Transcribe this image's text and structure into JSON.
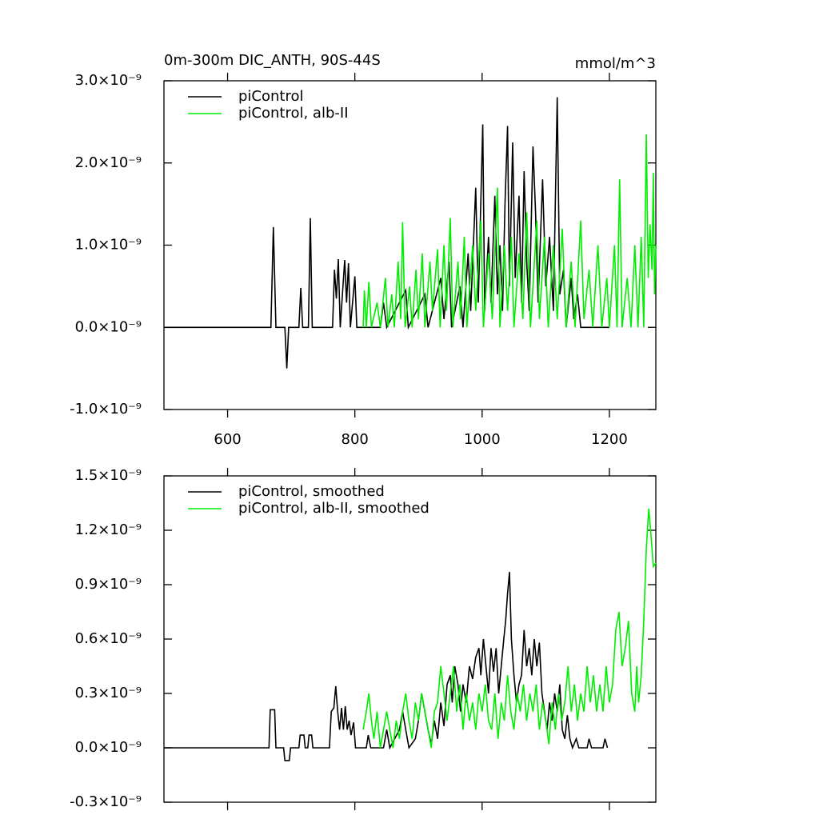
{
  "chart_data": [
    {
      "type": "line",
      "title": "0m-300m DIC_ANTH, 90S-44S",
      "unit_label": "mmol/m^3",
      "xlim": [
        500,
        1273
      ],
      "xticks": [
        600,
        800,
        1000,
        1200
      ],
      "ylim": [
        -1e-09,
        3e-09
      ],
      "yticks": [
        {
          "value": -1e-09,
          "label": "-1.0×10⁻⁹"
        },
        {
          "value": 0,
          "label": "0.0×10⁻⁹"
        },
        {
          "value": 1e-09,
          "label": "1.0×10⁻⁹"
        },
        {
          "value": 2e-09,
          "label": "2.0×10⁻⁹"
        },
        {
          "value": 3e-09,
          "label": "3.0×10⁻⁹"
        }
      ],
      "series": [
        {
          "name": "piControl",
          "color": "#000000",
          "x": [
            500,
            668,
            672,
            676,
            690,
            693,
            696,
            712,
            715,
            718,
            727,
            730,
            733,
            765,
            768,
            771,
            774,
            777,
            784,
            787,
            790,
            793,
            800,
            803,
            840,
            845,
            850,
            880,
            884,
            910,
            915,
            935,
            940,
            948,
            952,
            965,
            970,
            978,
            982,
            990,
            994,
            1001,
            1004,
            1010,
            1014,
            1020,
            1024,
            1028,
            1032,
            1036,
            1040,
            1043,
            1048,
            1052,
            1058,
            1062,
            1066,
            1070,
            1074,
            1080,
            1084,
            1088,
            1095,
            1100,
            1106,
            1112,
            1118,
            1122,
            1128,
            1132,
            1140,
            1144,
            1150,
            1155,
            1200
          ],
          "values": [
            0,
            0,
            1.22e-09,
            0,
            0,
            -5e-10,
            0,
            0,
            4.8e-10,
            0,
            0,
            1.33e-09,
            0,
            0,
            7e-10,
            3.5e-10,
            8.3e-10,
            0,
            8.2e-10,
            3e-10,
            7.8e-10,
            0,
            6.2e-10,
            0,
            0,
            3e-10,
            0,
            4.5e-10,
            0,
            4e-10,
            0,
            6e-10,
            1e-10,
            8e-10,
            0,
            5e-10,
            0,
            9e-10,
            2e-10,
            1.7e-09,
            3e-10,
            2.47e-09,
            2e-10,
            1.1e-09,
            3e-10,
            1.6e-09,
            4e-10,
            1e-09,
            2e-10,
            1.5e-09,
            2.45e-09,
            5e-10,
            2.25e-09,
            6e-10,
            1.6e-09,
            3e-10,
            1.9e-09,
            8e-10,
            2e-10,
            2.2e-09,
            1.4e-09,
            3e-10,
            1.8e-09,
            5e-10,
            1.1e-09,
            2e-10,
            2.8e-09,
            4e-10,
            7e-10,
            0,
            6e-10,
            1e-10,
            4e-10,
            0,
            0
          ]
        },
        {
          "name": "piControl, alb-II",
          "color": "#00ee00",
          "x": [
            813,
            815,
            818,
            822,
            826,
            835,
            840,
            848,
            852,
            858,
            862,
            868,
            872,
            875,
            879,
            886,
            890,
            896,
            900,
            906,
            910,
            918,
            922,
            930,
            934,
            940,
            944,
            950,
            954,
            962,
            966,
            972,
            976,
            985,
            990,
            998,
            1002,
            1010,
            1016,
            1024,
            1028,
            1035,
            1040,
            1046,
            1050,
            1058,
            1064,
            1070,
            1076,
            1086,
            1090,
            1098,
            1104,
            1112,
            1118,
            1126,
            1132,
            1140,
            1146,
            1155,
            1160,
            1168,
            1174,
            1182,
            1188,
            1196,
            1200,
            1208,
            1212,
            1216,
            1220,
            1228,
            1234,
            1240,
            1245,
            1250,
            1254,
            1258,
            1261,
            1264,
            1267,
            1269,
            1271,
            1273
          ],
          "values": [
            0,
            4.5e-10,
            0,
            5.5e-10,
            0,
            3e-10,
            0,
            6e-10,
            0,
            4e-10,
            0,
            8e-10,
            1e-10,
            1.28e-09,
            0,
            5e-10,
            0,
            7e-10,
            1e-10,
            9e-10,
            0,
            8e-10,
            2e-10,
            9.5e-10,
            0,
            1e-09,
            2e-10,
            1.33e-09,
            0,
            8e-10,
            1e-10,
            1.1e-09,
            0,
            1e-09,
            2e-10,
            1.3e-09,
            0,
            9e-10,
            1e-10,
            1.7e-09,
            0,
            1e-09,
            2e-10,
            1.1e-09,
            0,
            9e-10,
            1e-10,
            1.4e-09,
            0,
            1.3e-09,
            1e-10,
            1.1e-09,
            0,
            1e-09,
            1e-10,
            1.2e-09,
            0,
            8e-10,
            0,
            1.3e-09,
            1e-10,
            7e-10,
            0,
            1e-09,
            0,
            6e-10,
            0,
            1e-09,
            0,
            1.8e-09,
            0,
            6e-10,
            0,
            1e-09,
            0,
            1.1e-09,
            0,
            2.35e-09,
            6e-10,
            1.25e-09,
            7e-10,
            1.88e-09,
            4e-10,
            1e-09
          ]
        }
      ]
    },
    {
      "type": "line",
      "xlim": [
        500,
        1273
      ],
      "ylim": [
        -3e-10,
        1.5e-09
      ],
      "yticks": [
        {
          "value": -3e-10,
          "label": "-0.3×10⁻⁹"
        },
        {
          "value": 0,
          "label": "0.0×10⁻⁹"
        },
        {
          "value": 3e-10,
          "label": "0.3×10⁻⁹"
        },
        {
          "value": 6e-10,
          "label": "0.6×10⁻⁹"
        },
        {
          "value": 9e-10,
          "label": "0.9×10⁻⁹"
        },
        {
          "value": 1.2e-09,
          "label": "1.2×10⁻⁹"
        },
        {
          "value": 1.5e-09,
          "label": "1.5×10⁻⁹"
        }
      ],
      "series": [
        {
          "name": "piControl, smoothed",
          "color": "#000000",
          "x": [
            500,
            665,
            667,
            674,
            676,
            688,
            690,
            697,
            699,
            712,
            714,
            720,
            722,
            726,
            728,
            732,
            734,
            760,
            763,
            767,
            770,
            773,
            776,
            779,
            782,
            785,
            788,
            791,
            794,
            798,
            801,
            818,
            821,
            825,
            845,
            850,
            855,
            870,
            875,
            880,
            885,
            895,
            900,
            905,
            910,
            915,
            920,
            925,
            930,
            935,
            940,
            945,
            950,
            953,
            957,
            962,
            966,
            970,
            975,
            980,
            985,
            990,
            995,
            998,
            1002,
            1006,
            1010,
            1014,
            1018,
            1022,
            1026,
            1030,
            1034,
            1037,
            1040,
            1043,
            1046,
            1050,
            1054,
            1058,
            1062,
            1066,
            1070,
            1074,
            1078,
            1082,
            1086,
            1090,
            1094,
            1098,
            1102,
            1106,
            1110,
            1114,
            1118,
            1122,
            1126,
            1130,
            1134,
            1138,
            1142,
            1148,
            1152,
            1165,
            1168,
            1172,
            1190,
            1193,
            1197
          ],
          "values": [
            0,
            0,
            2.1e-10,
            2.1e-10,
            0,
            0,
            -7e-11,
            -7e-11,
            0,
            0,
            7e-11,
            7e-11,
            0,
            0,
            7e-11,
            7e-11,
            0,
            0,
            2e-10,
            2.2e-10,
            3.4e-10,
            2e-10,
            1e-10,
            2.2e-10,
            1e-10,
            2.3e-10,
            1e-10,
            1.5e-10,
            7e-11,
            1.4e-10,
            0,
            0,
            7e-11,
            0,
            0,
            1e-10,
            0,
            1e-10,
            2e-10,
            1e-10,
            0,
            5e-11,
            1.5e-10,
            3e-10,
            2e-10,
            1e-10,
            2e-11,
            1.5e-10,
            5e-11,
            2.5e-10,
            1.2e-10,
            3.5e-10,
            4e-10,
            2.5e-10,
            4.5e-10,
            3.5e-10,
            2e-10,
            3.5e-10,
            2.5e-10,
            4.5e-10,
            3.8e-10,
            5e-10,
            5.5e-10,
            4e-10,
            6e-10,
            4.5e-10,
            3e-10,
            5.5e-10,
            4.2e-10,
            5.5e-10,
            3e-10,
            4.5e-10,
            6e-10,
            7e-10,
            8.5e-10,
            9.7e-10,
            6e-10,
            4e-10,
            2.5e-10,
            3.5e-10,
            4e-10,
            6.5e-10,
            4.5e-10,
            5.5e-10,
            4e-10,
            6e-10,
            4.5e-10,
            5.8e-10,
            3e-10,
            2e-10,
            1e-10,
            2.5e-10,
            1.5e-10,
            3e-10,
            2e-10,
            3.5e-10,
            1e-10,
            5e-11,
            1.8e-10,
            5e-11,
            0,
            5e-11,
            0,
            0,
            5e-11,
            0,
            0,
            5e-11,
            0
          ]
        },
        {
          "name": "piControl, alb-II, smoothed",
          "color": "#00ee00",
          "x": [
            813,
            818,
            822,
            826,
            830,
            835,
            840,
            845,
            850,
            855,
            860,
            865,
            870,
            875,
            880,
            885,
            890,
            895,
            900,
            905,
            910,
            915,
            920,
            925,
            930,
            935,
            940,
            945,
            950,
            955,
            960,
            965,
            970,
            975,
            980,
            985,
            990,
            995,
            1000,
            1005,
            1010,
            1015,
            1020,
            1025,
            1030,
            1035,
            1040,
            1045,
            1050,
            1055,
            1060,
            1065,
            1070,
            1075,
            1080,
            1085,
            1090,
            1095,
            1100,
            1105,
            1110,
            1115,
            1120,
            1125,
            1130,
            1135,
            1140,
            1145,
            1150,
            1155,
            1160,
            1165,
            1170,
            1175,
            1180,
            1185,
            1190,
            1195,
            1200,
            1205,
            1210,
            1215,
            1220,
            1225,
            1230,
            1235,
            1240,
            1243,
            1246,
            1250,
            1254,
            1258,
            1262,
            1266,
            1269,
            1273
          ],
          "values": [
            1e-10,
            2e-10,
            3e-10,
            1.5e-10,
            5e-11,
            2e-10,
            0,
            1e-10,
            2e-10,
            1e-10,
            0,
            1.5e-10,
            5e-11,
            2e-10,
            3e-10,
            1.5e-10,
            5e-11,
            2.5e-10,
            1.5e-10,
            3e-10,
            2e-10,
            1e-10,
            0,
            2e-10,
            2.5e-10,
            4.5e-10,
            3e-10,
            1.5e-10,
            3e-10,
            4.5e-10,
            2e-10,
            3.5e-10,
            1e-10,
            3e-10,
            1.5e-10,
            2.5e-10,
            1e-10,
            3e-10,
            2e-10,
            3.5e-10,
            1.5e-10,
            1e-10,
            3e-10,
            5e-11,
            2.5e-10,
            1.5e-10,
            4e-10,
            2e-10,
            1e-10,
            3e-10,
            2e-10,
            3.5e-10,
            1.5e-10,
            3e-10,
            2e-10,
            3.5e-10,
            1e-10,
            2.5e-10,
            1.5e-10,
            2e-11,
            2.5e-10,
            1e-10,
            3e-10,
            1.5e-10,
            2.5e-10,
            4.5e-10,
            2e-10,
            3.5e-10,
            1.5e-10,
            3e-10,
            2e-10,
            4.5e-10,
            2.5e-10,
            4e-10,
            2e-10,
            3.5e-10,
            2e-10,
            4.5e-10,
            2.5e-10,
            3.5e-10,
            6.5e-10,
            7.5e-10,
            4.5e-10,
            5.5e-10,
            7e-10,
            3e-10,
            2e-10,
            4.5e-10,
            2.5e-10,
            4e-10,
            7e-10,
            1.1e-09,
            1.32e-09,
            1.15e-09,
            1e-09,
            1.02e-09
          ]
        }
      ]
    }
  ]
}
